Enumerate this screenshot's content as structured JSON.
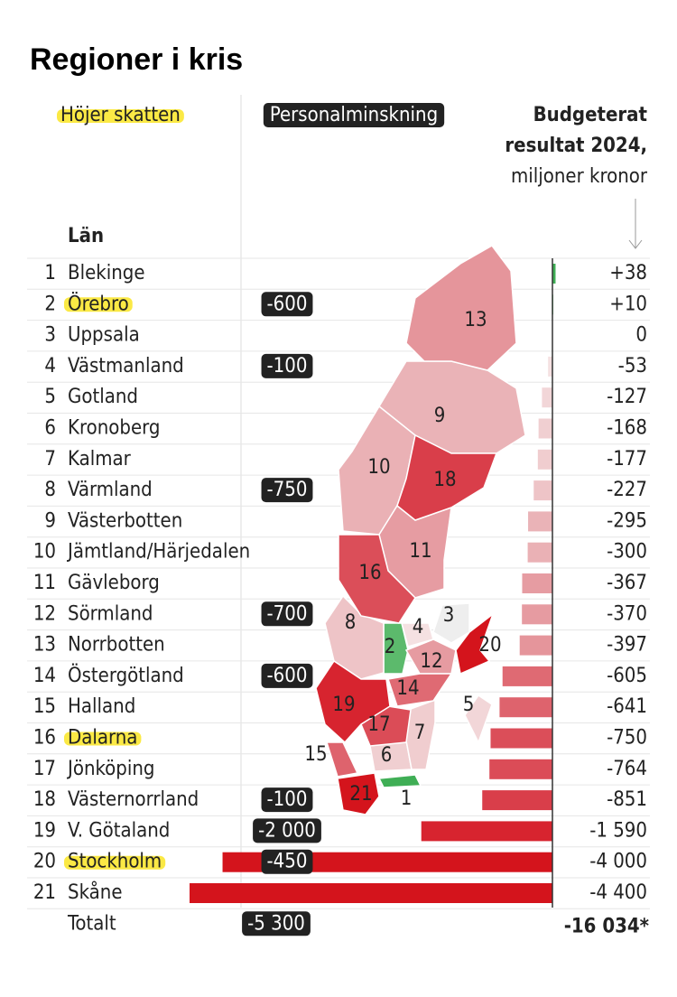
{
  "chart_data": {
    "type": "bar",
    "title": "Regioner i kris",
    "legend_tax": "Höjer skatten",
    "legend_staff": "Personalminskning",
    "value_header": [
      "Budgeterat",
      "resultat 2024,",
      "miljoner kronor"
    ],
    "category_header": "Län",
    "numbers": [
      1,
      2,
      3,
      4,
      5,
      6,
      7,
      8,
      9,
      10,
      11,
      12,
      13,
      14,
      15,
      16,
      17,
      18,
      19,
      20,
      21
    ],
    "categories": [
      "Blekinge",
      "Örebro",
      "Uppsala",
      "Västmanland",
      "Gotland",
      "Kronoberg",
      "Kalmar",
      "Värmland",
      "Västerbotten",
      "Jämtland/Härjedalen",
      "Gävleborg",
      "Sörmland",
      "Norrbotten",
      "Östergötland",
      "Halland",
      "Dalarna",
      "Jönköping",
      "Västernorrland",
      "V. Götaland",
      "Stockholm",
      "Skåne"
    ],
    "raises_tax": [
      false,
      true,
      false,
      false,
      false,
      false,
      false,
      false,
      false,
      false,
      false,
      false,
      false,
      false,
      false,
      true,
      false,
      false,
      false,
      true,
      false
    ],
    "staff_cuts": [
      null,
      "-600",
      null,
      "-100",
      null,
      null,
      null,
      "-750",
      null,
      null,
      null,
      "-700",
      null,
      "-600",
      null,
      null,
      null,
      "-100",
      "-2 000",
      "-450",
      null
    ],
    "values": [
      38,
      10,
      0,
      -53,
      -127,
      -168,
      -177,
      -227,
      -295,
      -300,
      -367,
      -370,
      -397,
      -605,
      -641,
      -750,
      -764,
      -851,
      -1590,
      -4000,
      -4400
    ],
    "value_labels": [
      "+38",
      "+10",
      "0",
      "-53",
      "-127",
      "-168",
      "-177",
      "-227",
      "-295",
      "-300",
      "-367",
      "-370",
      "-397",
      "-605",
      "-641",
      "-750",
      "-764",
      "-851",
      "-1 590",
      "-4 000",
      "-4 400"
    ],
    "colors": [
      "#3fae55",
      "#5cba6c",
      "#eeeeee",
      "#f5e1e2",
      "#f2d6d8",
      "#f0cfd1",
      "#f0cdcf",
      "#eec4c7",
      "#eab3b7",
      "#eab1b5",
      "#e69ca2",
      "#e69ba1",
      "#e5959b",
      "#df6a73",
      "#de636d",
      "#db4e59",
      "#db4c57",
      "#d93e4a",
      "#d7242f",
      "#d4141c",
      "#d4141c"
    ],
    "xlim": [
      -4400,
      0
    ],
    "total_label": "Totalt",
    "total_staff": "-5 300",
    "total_value": "-16 034*"
  }
}
